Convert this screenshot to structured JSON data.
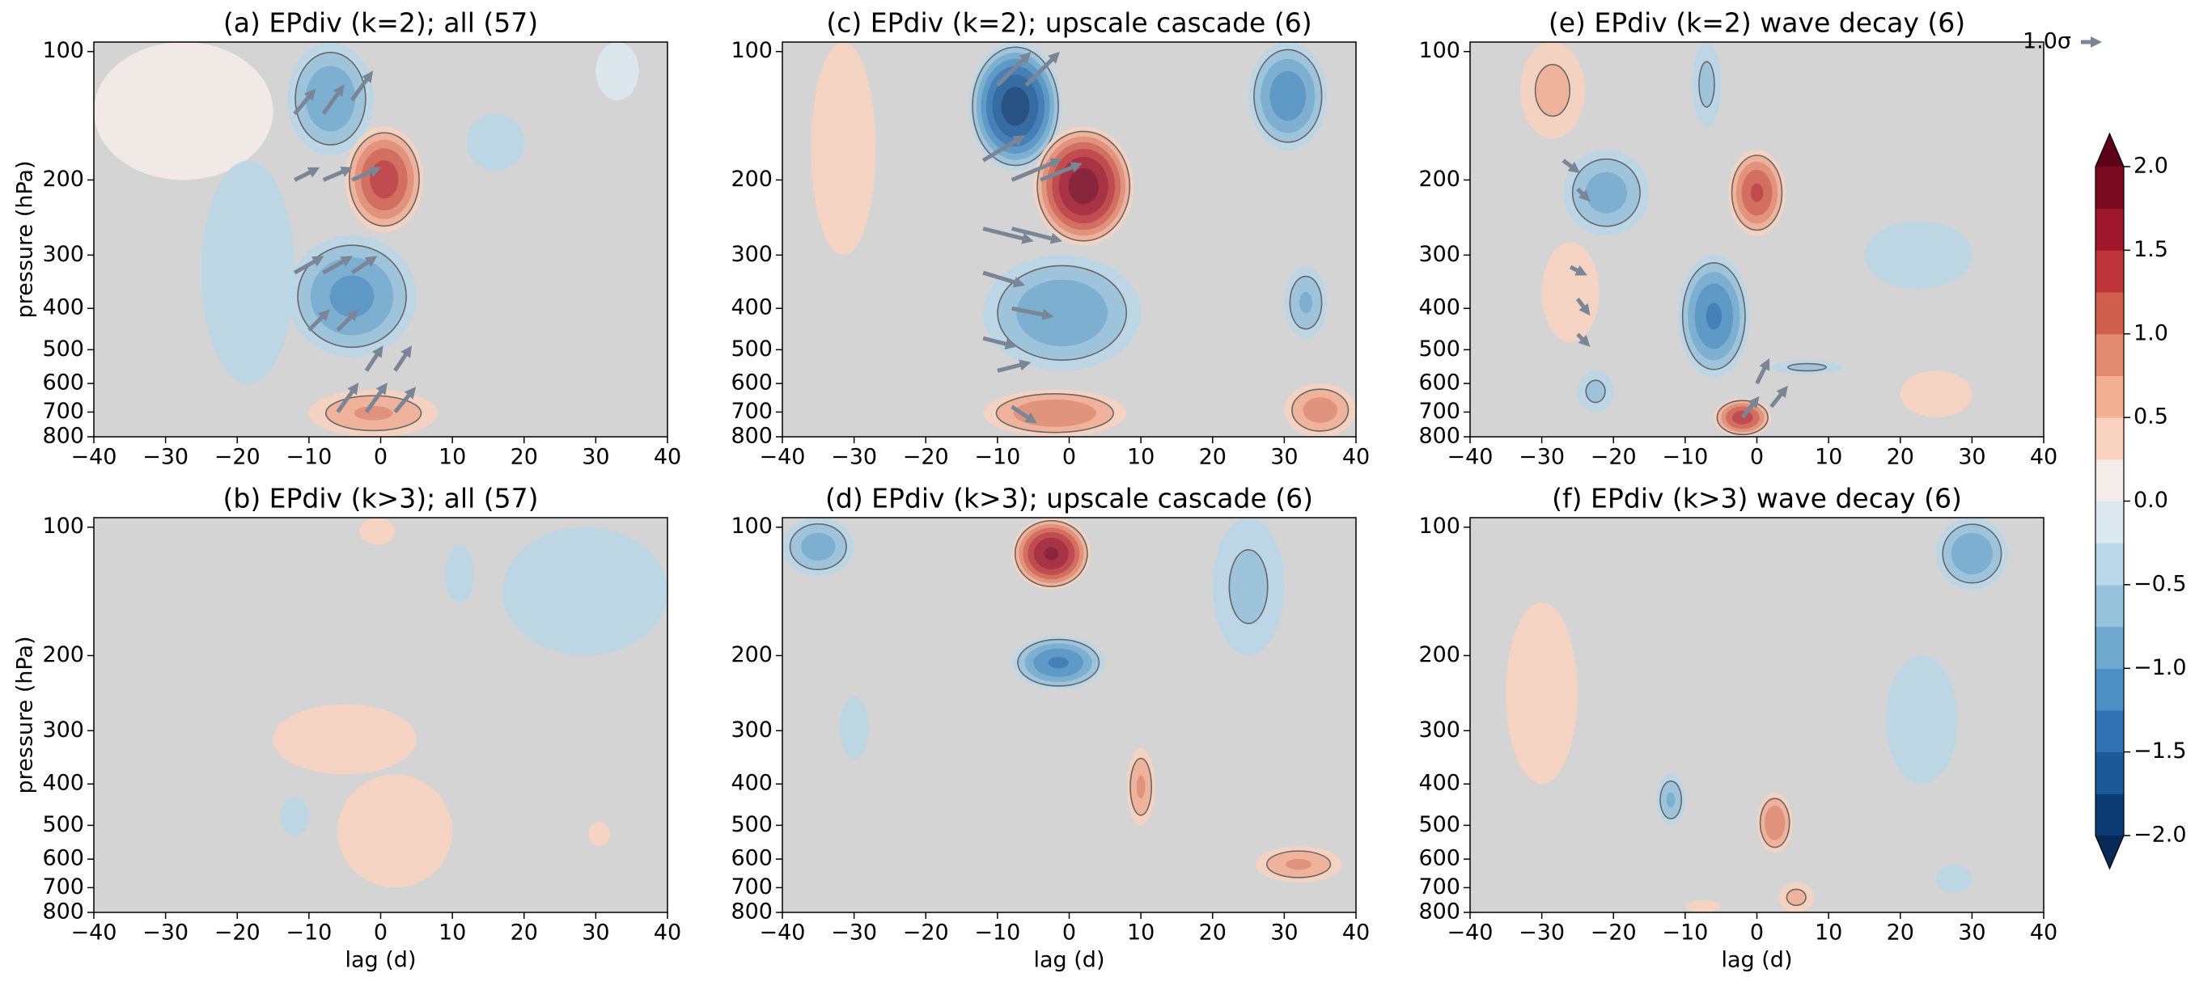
{
  "chart_data": [
    {
      "type": "contour",
      "title": "(a) EPdiv (k=2); all (57)",
      "ylabel": "pressure (hPa)",
      "xlim": [
        -40,
        40
      ],
      "ylim": [
        800,
        95
      ],
      "yscale": "log",
      "background": "#d4d4d4",
      "xticks": [
        {
          "value": -40,
          "label": "−40"
        },
        {
          "value": -30,
          "label": "−30"
        },
        {
          "value": -20,
          "label": "−20"
        },
        {
          "value": -10,
          "label": "−10"
        },
        0,
        10,
        20,
        30,
        40
      ],
      "yticks": [
        100,
        200,
        300,
        400,
        500,
        600,
        700,
        800
      ],
      "blobs": [
        {
          "lag": [
            -40,
            -15
          ],
          "p": [
            95,
            200
          ],
          "value": 0.15
        },
        {
          "lag": [
            -25,
            -12
          ],
          "p": [
            180,
            600
          ],
          "value": -0.3
        },
        {
          "lag": [
            -13,
            -1
          ],
          "p": [
            95,
            175
          ],
          "value": -1.0
        },
        {
          "lag": [
            -5,
            6
          ],
          "p": [
            150,
            265
          ],
          "value": 1.4
        },
        {
          "lag": [
            -13,
            5
          ],
          "p": [
            270,
            520
          ],
          "value": -1.1
        },
        {
          "lag": [
            -10,
            8
          ],
          "p": [
            620,
            800
          ],
          "value": 0.8
        },
        {
          "lag": [
            12,
            20
          ],
          "p": [
            140,
            190
          ],
          "value": -0.3
        },
        {
          "lag": [
            30,
            36
          ],
          "p": [
            95,
            130
          ],
          "value": -0.2
        }
      ],
      "arrows": [
        {
          "lag": -12,
          "p": 140,
          "u": 0.5,
          "v": 0.6
        },
        {
          "lag": -8,
          "p": 140,
          "u": 0.5,
          "v": 0.7
        },
        {
          "lag": -4,
          "p": 130,
          "u": 0.5,
          "v": 0.7
        },
        {
          "lag": -12,
          "p": 200,
          "u": 0.6,
          "v": 0.3
        },
        {
          "lag": -8,
          "p": 200,
          "u": 0.7,
          "v": 0.3
        },
        {
          "lag": -4,
          "p": 200,
          "u": 0.7,
          "v": 0.3
        },
        {
          "lag": -12,
          "p": 330,
          "u": 0.7,
          "v": 0.4
        },
        {
          "lag": -8,
          "p": 330,
          "u": 0.7,
          "v": 0.4
        },
        {
          "lag": -4,
          "p": 330,
          "u": 0.6,
          "v": 0.4
        },
        {
          "lag": -10,
          "p": 450,
          "u": 0.5,
          "v": 0.5
        },
        {
          "lag": -6,
          "p": 450,
          "u": 0.5,
          "v": 0.5
        },
        {
          "lag": -2,
          "p": 560,
          "u": 0.4,
          "v": 0.6
        },
        {
          "lag": 2,
          "p": 560,
          "u": 0.4,
          "v": 0.6
        },
        {
          "lag": -6,
          "p": 700,
          "u": 0.5,
          "v": 0.7
        },
        {
          "lag": -2,
          "p": 700,
          "u": 0.5,
          "v": 0.7
        },
        {
          "lag": 2,
          "p": 700,
          "u": 0.5,
          "v": 0.6
        }
      ]
    },
    {
      "type": "contour",
      "title": "(c) EPdiv (k=2); upscale cascade (6)",
      "xlim": [
        -40,
        40
      ],
      "ylim": [
        800,
        95
      ],
      "yscale": "log",
      "background": "#d4d4d4",
      "xticks": [
        {
          "value": -40,
          "label": "−40"
        },
        {
          "value": -30,
          "label": "−30"
        },
        {
          "value": -20,
          "label": "−20"
        },
        {
          "value": -10,
          "label": "−10"
        },
        0,
        10,
        20,
        30,
        40
      ],
      "yticks": [
        100,
        200,
        300,
        400,
        500,
        600,
        700,
        800
      ],
      "blobs": [
        {
          "lag": [
            -36,
            -27
          ],
          "p": [
            95,
            300
          ],
          "value": 0.3
        },
        {
          "lag": [
            -14,
            -1
          ],
          "p": [
            95,
            190
          ],
          "value": -1.9
        },
        {
          "lag": [
            -5,
            9
          ],
          "p": [
            150,
            285
          ],
          "value": 1.9
        },
        {
          "lag": [
            25,
            36
          ],
          "p": [
            95,
            170
          ],
          "value": -1.2
        },
        {
          "lag": [
            -12,
            10
          ],
          "p": [
            300,
            560
          ],
          "value": -1.0
        },
        {
          "lag": [
            30,
            36
          ],
          "p": [
            320,
            470
          ],
          "value": -0.8
        },
        {
          "lag": [
            -12,
            8
          ],
          "p": [
            620,
            800
          ],
          "value": 1.0
        },
        {
          "lag": [
            30,
            40
          ],
          "p": [
            600,
            800
          ],
          "value": 0.9
        }
      ],
      "arrows": [
        {
          "lag": -10,
          "p": 120,
          "u": 0.8,
          "v": 0.8
        },
        {
          "lag": -6,
          "p": 120,
          "u": 0.8,
          "v": 0.8
        },
        {
          "lag": -12,
          "p": 180,
          "u": 1.0,
          "v": 0.6
        },
        {
          "lag": -8,
          "p": 200,
          "u": 1.2,
          "v": 0.5
        },
        {
          "lag": -4,
          "p": 200,
          "u": 1.0,
          "v": 0.4
        },
        {
          "lag": -12,
          "p": 260,
          "u": 1.2,
          "v": -0.3
        },
        {
          "lag": -8,
          "p": 260,
          "u": 1.2,
          "v": -0.3
        },
        {
          "lag": -12,
          "p": 330,
          "u": 1.0,
          "v": -0.3
        },
        {
          "lag": -8,
          "p": 400,
          "u": 1.0,
          "v": -0.2
        },
        {
          "lag": -12,
          "p": 470,
          "u": 0.8,
          "v": -0.2
        },
        {
          "lag": -10,
          "p": 560,
          "u": 0.8,
          "v": 0.2
        },
        {
          "lag": -8,
          "p": 680,
          "u": 0.6,
          "v": -0.4
        }
      ]
    },
    {
      "type": "contour",
      "title": "(e) EPdiv (k=2) wave decay (6)",
      "xlim": [
        -40,
        40
      ],
      "ylim": [
        800,
        95
      ],
      "yscale": "log",
      "background": "#d4d4d4",
      "xticks": [
        {
          "value": -40,
          "label": "−40"
        },
        {
          "value": -30,
          "label": "−30"
        },
        {
          "value": -20,
          "label": "−20"
        },
        {
          "value": -10,
          "label": "−10"
        },
        0,
        10,
        20,
        30,
        40
      ],
      "yticks": [
        100,
        200,
        300,
        400,
        500,
        600,
        700,
        800
      ],
      "blobs": [
        {
          "lag": [
            -33,
            -24
          ],
          "p": [
            95,
            160
          ],
          "value": 0.6
        },
        {
          "lag": [
            -27,
            -15
          ],
          "p": [
            170,
            270
          ],
          "value": -0.9
        },
        {
          "lag": [
            -30,
            -22
          ],
          "p": [
            280,
            480
          ],
          "value": 0.5
        },
        {
          "lag": [
            -4,
            4
          ],
          "p": [
            170,
            270
          ],
          "value": 1.3
        },
        {
          "lag": [
            -11,
            -1
          ],
          "p": [
            300,
            580
          ],
          "value": -1.3
        },
        {
          "lag": [
            -9,
            -5
          ],
          "p": [
            95,
            150
          ],
          "value": -0.6
        },
        {
          "lag": [
            -25,
            -20
          ],
          "p": [
            560,
            700
          ],
          "value": -0.6
        },
        {
          "lag": [
            -6,
            2
          ],
          "p": [
            650,
            800
          ],
          "value": 1.4
        },
        {
          "lag": [
            2,
            12
          ],
          "p": [
            530,
            570
          ],
          "value": -0.6
        },
        {
          "lag": [
            15,
            30
          ],
          "p": [
            250,
            360
          ],
          "value": -0.4
        },
        {
          "lag": [
            20,
            30
          ],
          "p": [
            560,
            720
          ],
          "value": 0.3
        }
      ],
      "arrows": [
        {
          "lag": -27,
          "p": 180,
          "u": 0.4,
          "v": -0.3
        },
        {
          "lag": -25,
          "p": 210,
          "u": 0.3,
          "v": -0.3
        },
        {
          "lag": -26,
          "p": 320,
          "u": 0.4,
          "v": -0.2
        },
        {
          "lag": -25,
          "p": 380,
          "u": 0.3,
          "v": -0.4
        },
        {
          "lag": -25,
          "p": 460,
          "u": 0.3,
          "v": -0.3
        },
        {
          "lag": 0,
          "p": 600,
          "u": 0.3,
          "v": 0.6
        },
        {
          "lag": 2,
          "p": 680,
          "u": 0.4,
          "v": 0.5
        },
        {
          "lag": -2,
          "p": 720,
          "u": 0.4,
          "v": 0.5
        }
      ],
      "quiver_key": {
        "label": "1.0σ",
        "value": 1.0
      }
    },
    {
      "type": "contour",
      "title": "(b) EPdiv (k>3); all (57)",
      "ylabel": "pressure (hPa)",
      "xlabel": "lag (d)",
      "xlim": [
        -40,
        40
      ],
      "ylim": [
        800,
        95
      ],
      "yscale": "log",
      "background": "#d4d4d4",
      "xticks": [
        {
          "value": -40,
          "label": "−40"
        },
        {
          "value": -30,
          "label": "−30"
        },
        {
          "value": -20,
          "label": "−20"
        },
        {
          "value": -10,
          "label": "−10"
        },
        0,
        10,
        20,
        30,
        40
      ],
      "yticks": [
        100,
        200,
        300,
        400,
        500,
        600,
        700,
        800
      ],
      "blobs": [
        {
          "lag": [
            -15,
            5
          ],
          "p": [
            260,
            380
          ],
          "value": 0.4
        },
        {
          "lag": [
            -6,
            10
          ],
          "p": [
            380,
            700
          ],
          "value": 0.35
        },
        {
          "lag": [
            17,
            40
          ],
          "p": [
            100,
            200
          ],
          "value": -0.3
        },
        {
          "lag": [
            9,
            13
          ],
          "p": [
            110,
            150
          ],
          "value": -0.3
        },
        {
          "lag": [
            -14,
            -10
          ],
          "p": [
            430,
            530
          ],
          "value": -0.5
        },
        {
          "lag": [
            29,
            32
          ],
          "p": [
            490,
            560
          ],
          "value": 0.4
        },
        {
          "lag": [
            -3,
            2
          ],
          "p": [
            95,
            110
          ],
          "value": 0.3
        }
      ]
    },
    {
      "type": "contour",
      "title": "(d) EPdiv (k>3); upscale cascade (6)",
      "xlabel": "lag (d)",
      "xlim": [
        -40,
        40
      ],
      "ylim": [
        800,
        95
      ],
      "yscale": "log",
      "background": "#d4d4d4",
      "xticks": [
        {
          "value": -40,
          "label": "−40"
        },
        {
          "value": -30,
          "label": "−30"
        },
        {
          "value": -20,
          "label": "−20"
        },
        {
          "value": -10,
          "label": "−10"
        },
        0,
        10,
        20,
        30,
        40
      ],
      "yticks": [
        100,
        200,
        300,
        400,
        500,
        600,
        700,
        800
      ],
      "blobs": [
        {
          "lag": [
            -8,
            3
          ],
          "p": [
            95,
            140
          ],
          "value": 1.8
        },
        {
          "lag": [
            -8,
            5
          ],
          "p": [
            180,
            240
          ],
          "value": -1.3
        },
        {
          "lag": [
            -40,
            -30
          ],
          "p": [
            95,
            130
          ],
          "value": -0.9
        },
        {
          "lag": [
            20,
            30
          ],
          "p": [
            95,
            200
          ],
          "value": -0.6
        },
        {
          "lag": [
            8,
            12
          ],
          "p": [
            330,
            500
          ],
          "value": 0.8
        },
        {
          "lag": [
            26,
            38
          ],
          "p": [
            560,
            680
          ],
          "value": 0.8
        },
        {
          "lag": [
            -32,
            -28
          ],
          "p": [
            250,
            350
          ],
          "value": -0.5
        }
      ]
    },
    {
      "type": "contour",
      "title": "(f) EPdiv (k>3) wave decay (6)",
      "xlabel": "lag (d)",
      "xlim": [
        -40,
        40
      ],
      "ylim": [
        800,
        95
      ],
      "yscale": "log",
      "background": "#d4d4d4",
      "xticks": [
        {
          "value": -40,
          "label": "−40"
        },
        {
          "value": -30,
          "label": "−30"
        },
        {
          "value": -20,
          "label": "−20"
        },
        {
          "value": -10,
          "label": "−10"
        },
        0,
        10,
        20,
        30,
        40
      ],
      "yticks": [
        100,
        200,
        300,
        400,
        500,
        600,
        700,
        800
      ],
      "blobs": [
        {
          "lag": [
            -35,
            -25
          ],
          "p": [
            150,
            400
          ],
          "value": 0.3
        },
        {
          "lag": [
            25,
            35
          ],
          "p": [
            95,
            140
          ],
          "value": -1.0
        },
        {
          "lag": [
            0,
            5
          ],
          "p": [
            420,
            580
          ],
          "value": 1.0
        },
        {
          "lag": [
            -14,
            -10
          ],
          "p": [
            380,
            500
          ],
          "value": -0.8
        },
        {
          "lag": [
            3,
            8
          ],
          "p": [
            680,
            800
          ],
          "value": 0.6
        },
        {
          "lag": [
            18,
            28
          ],
          "p": [
            200,
            400
          ],
          "value": -0.4
        },
        {
          "lag": [
            -10,
            -5
          ],
          "p": [
            750,
            800
          ],
          "value": 0.5
        },
        {
          "lag": [
            25,
            30
          ],
          "p": [
            620,
            720
          ],
          "value": -0.4
        }
      ]
    }
  ],
  "colorbar": {
    "levels": [
      -2.0,
      -1.75,
      -1.5,
      -1.25,
      -1.0,
      -0.75,
      -0.5,
      -0.25,
      0.0,
      0.25,
      0.5,
      0.75,
      1.0,
      1.25,
      1.5,
      1.75,
      2.0
    ],
    "colors": [
      "#0b3c73",
      "#1a5a99",
      "#2f72b3",
      "#4b90c4",
      "#6fa9d0",
      "#95c2dd",
      "#b9d7e8",
      "#dce9f1",
      "#f4ece8",
      "#f9d2bf",
      "#f4ae92",
      "#e48a6f",
      "#d25e4e",
      "#bd3538",
      "#a0172c",
      "#7b0a21"
    ],
    "under_color": "#062a55",
    "over_color": "#5e0019",
    "ticks": [
      {
        "value": -2.0,
        "label": "−2.0"
      },
      {
        "value": -1.5,
        "label": "−1.5"
      },
      {
        "value": -1.0,
        "label": "−1.0"
      },
      {
        "value": -0.5,
        "label": "−0.5"
      },
      {
        "value": 0.0,
        "label": "0.0"
      },
      {
        "value": 0.5,
        "label": "0.5"
      },
      {
        "value": 1.0,
        "label": "1.0"
      },
      {
        "value": 1.5,
        "label": "1.5"
      },
      {
        "value": 2.0,
        "label": "2.0"
      }
    ]
  }
}
